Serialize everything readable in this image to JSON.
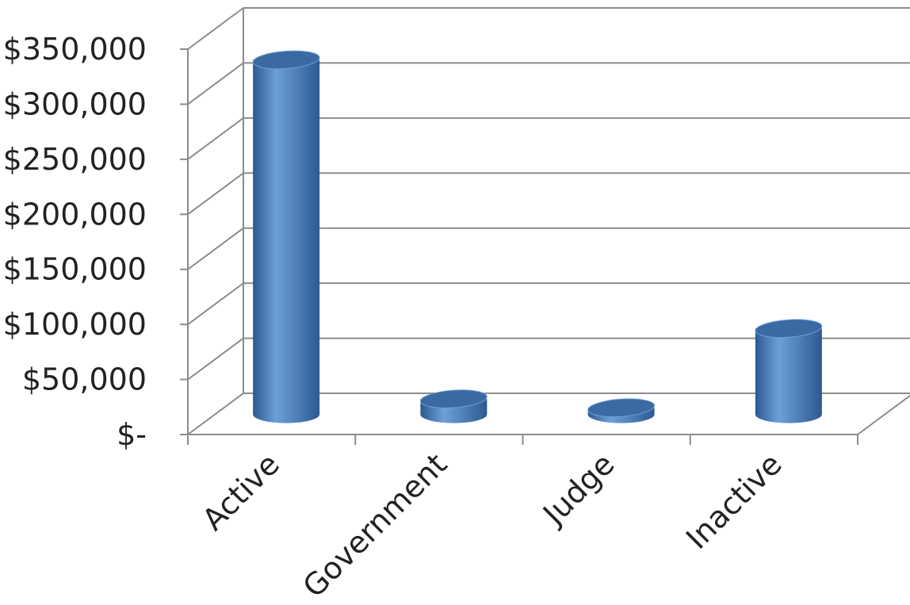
{
  "chart_data": {
    "type": "bar",
    "style": "3d-cylinder",
    "categories": [
      "Active",
      "Government",
      "Judge",
      "Inactive"
    ],
    "values": [
      322000,
      14000,
      6000,
      78000
    ],
    "ylim": [
      0,
      350000
    ],
    "y_ticks": [
      {
        "value": 350000,
        "label": "$350,000"
      },
      {
        "value": 300000,
        "label": "$300,000"
      },
      {
        "value": 250000,
        "label": "$250,000"
      },
      {
        "value": 200000,
        "label": "$200,000"
      },
      {
        "value": 150000,
        "label": "$150,000"
      },
      {
        "value": 100000,
        "label": "$100,000"
      },
      {
        "value": 50000,
        "label": "$50,000"
      },
      {
        "value": 0,
        "label": "$-"
      }
    ],
    "grid": true,
    "legend": "none",
    "title": "",
    "xlabel": "",
    "ylabel": "",
    "colors": {
      "bar_side": "#4a7ebb",
      "bar_dark": "#2c5a90",
      "bar_light": "#6e9fd9",
      "bar_top": "#3b6aa3",
      "gridline": "#8c8c8c",
      "axis": "#8c8c8c",
      "text": "#222222"
    }
  }
}
